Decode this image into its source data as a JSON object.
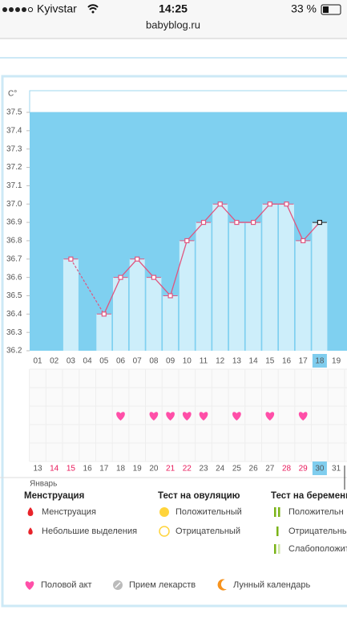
{
  "status_bar": {
    "carrier": "Kyivstar",
    "time": "14:25",
    "battery": "33 %"
  },
  "url": "babyblog.ru",
  "chart_data": {
    "type": "line",
    "ylabel": "C°",
    "categories": [
      "01",
      "02",
      "03",
      "04",
      "05",
      "06",
      "07",
      "08",
      "09",
      "10",
      "11",
      "12",
      "13",
      "14",
      "15",
      "16",
      "17",
      "18",
      "19"
    ],
    "dates": [
      "13",
      "14",
      "15",
      "16",
      "17",
      "18",
      "19",
      "20",
      "21",
      "22",
      "23",
      "24",
      "25",
      "26",
      "27",
      "28",
      "29",
      "30",
      "31"
    ],
    "month": "Январь",
    "values": [
      null,
      null,
      36.7,
      null,
      36.4,
      36.6,
      36.7,
      36.6,
      36.5,
      36.8,
      36.9,
      37.0,
      36.9,
      36.9,
      37.0,
      37.0,
      36.8,
      36.9,
      null
    ],
    "ylim": [
      36.2,
      37.5
    ],
    "yticks": [
      36.2,
      36.3,
      36.4,
      36.5,
      36.6,
      36.7,
      36.8,
      36.9,
      {
        "value": 37,
        "label": "37.0"
      },
      37.1,
      37.2,
      37.3,
      37.4,
      37.5
    ],
    "color": "#e0557f",
    "selected_index": 17,
    "weekend_color": "#e8185a",
    "weekends": [
      false,
      true,
      true,
      false,
      false,
      false,
      false,
      false,
      true,
      true,
      false,
      false,
      false,
      false,
      false,
      true,
      true,
      false,
      false
    ],
    "intercourse": [
      false,
      false,
      false,
      false,
      false,
      true,
      false,
      true,
      true,
      true,
      true,
      false,
      true,
      false,
      true,
      false,
      true,
      false,
      false
    ]
  },
  "legend": {
    "groups": [
      {
        "title": "Менструация",
        "items": [
          "Менструация",
          "Небольшие выделения"
        ]
      },
      {
        "title": "Тест на овуляцию",
        "items": [
          "Положительный",
          "Отрицательный"
        ]
      },
      {
        "title": "Тест на беременн",
        "items": [
          "Положительн",
          "Отрицательны",
          "Слабоположит"
        ]
      }
    ],
    "extras": [
      "Половой акт",
      "Прием лекарств",
      "Лунный календарь"
    ]
  }
}
